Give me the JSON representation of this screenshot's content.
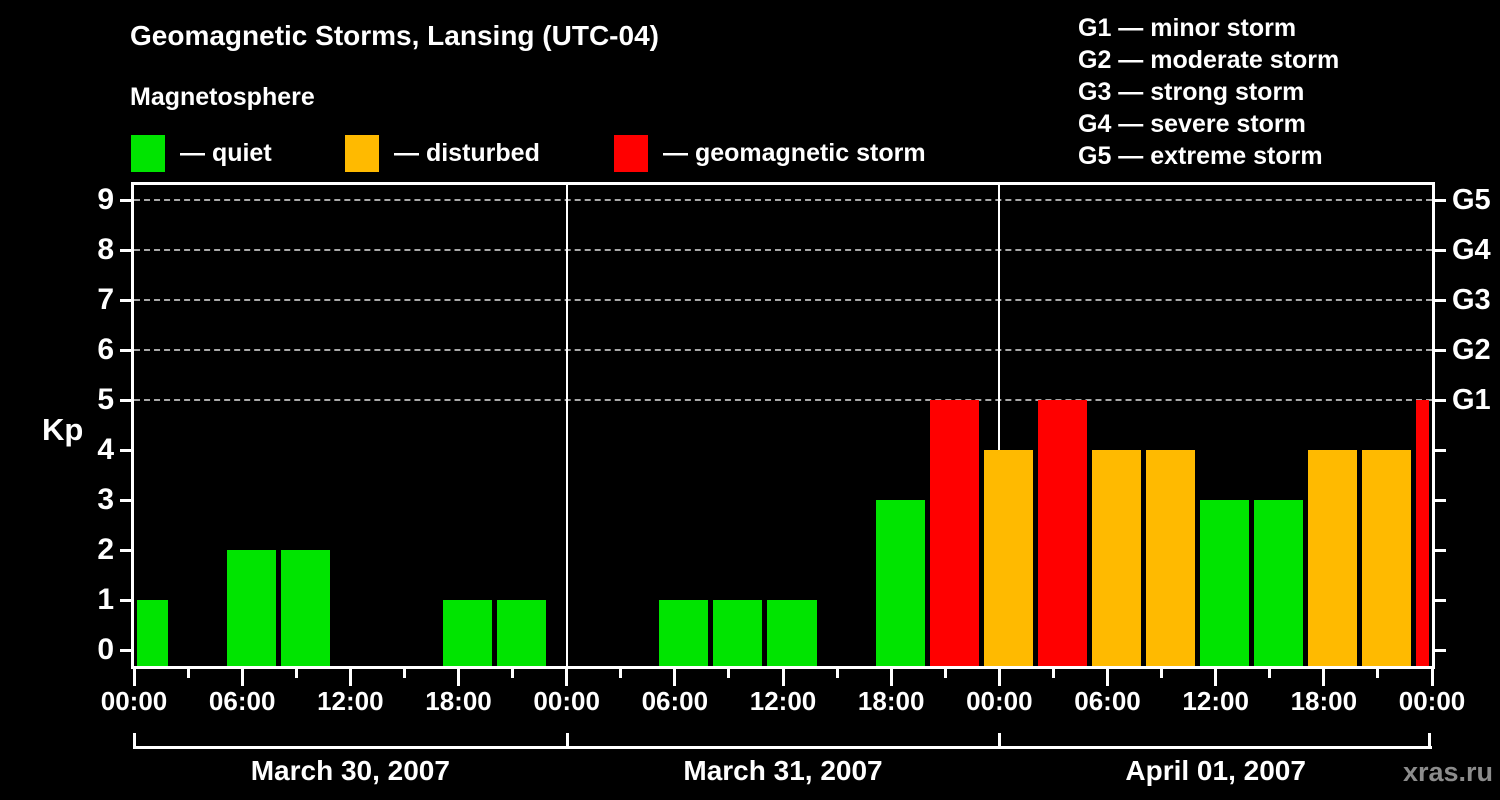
{
  "header": {
    "subtitle": "Magnetosphere",
    "legend": [
      {
        "name": "quiet",
        "label": "— quiet",
        "color": "#00e400"
      },
      {
        "name": "disturbed",
        "label": "— disturbed",
        "color": "#ffba00"
      },
      {
        "name": "storm",
        "label": "— geomagnetic storm",
        "color": "#ff0000"
      }
    ],
    "g_scale_legend": [
      "G1 — minor storm",
      "G2 — moderate storm",
      "G3 — strong storm",
      "G4 — severe storm",
      "G5 — extreme storm"
    ]
  },
  "chart_data": {
    "type": "bar",
    "title": "Geomagnetic Storms, Lansing (UTC-04)",
    "ylabel": "Kp",
    "ylim": [
      -0.32,
      9.3
    ],
    "y_ticks": [
      0,
      1,
      2,
      3,
      4,
      5,
      6,
      7,
      8,
      9
    ],
    "gridlines_at_kp": [
      5,
      6,
      7,
      8,
      9
    ],
    "grid_on": true,
    "right_axis_labels": [
      {
        "kp": 5,
        "label": "G1"
      },
      {
        "kp": 6,
        "label": "G2"
      },
      {
        "kp": 7,
        "label": "G3"
      },
      {
        "kp": 8,
        "label": "G4"
      },
      {
        "kp": 9,
        "label": "G5"
      }
    ],
    "hours_per_bar": 3,
    "x_tick_every_hours": 3,
    "x_label_every_hours": 6,
    "x_tick_labels": [
      "00:00",
      "06:00",
      "12:00",
      "18:00",
      "00:00",
      "06:00",
      "12:00",
      "18:00",
      "00:00",
      "06:00",
      "12:00",
      "18:00",
      "00:00"
    ],
    "days": [
      {
        "date": "March 30, 2007",
        "kp": [
          1,
          0,
          2,
          2,
          0,
          0,
          1,
          1
        ]
      },
      {
        "date": "March 31, 2007",
        "kp": [
          0,
          0,
          1,
          1,
          1,
          0,
          3,
          5
        ]
      },
      {
        "date": "April 01, 2007",
        "kp": [
          4,
          5,
          4,
          4,
          3,
          3,
          4,
          4
        ]
      }
    ],
    "next_interval_kp": 5,
    "color_rule": {
      "quiet_kp_max": 3,
      "disturbed_kp": 4,
      "storm_kp_min": 5
    }
  },
  "watermark": "xras.ru",
  "colors": {
    "background": "#000000",
    "text": "#ffffff",
    "gridline": "#a9a9a9",
    "watermark": "#8c8c8c"
  }
}
